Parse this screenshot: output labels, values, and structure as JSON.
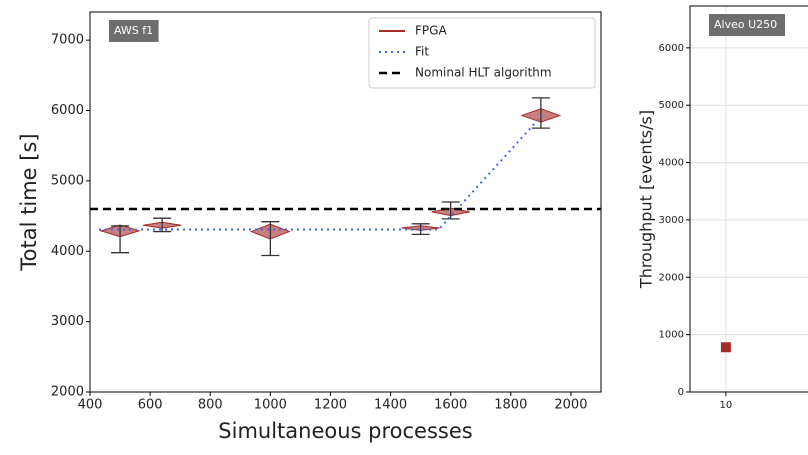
{
  "chart_data": [
    {
      "type": "violin",
      "label_box": "AWS f1",
      "xlabel": "Simultaneous processes",
      "ylabel": "Total time [s]",
      "xlim": [
        400,
        2100
      ],
      "ylim": [
        2000,
        7400
      ],
      "xticks": [
        400,
        600,
        800,
        1000,
        1200,
        1400,
        1600,
        1800,
        2000
      ],
      "yticks": [
        2000,
        3000,
        4000,
        5000,
        6000,
        7000
      ],
      "x": [
        500,
        640,
        1000,
        1500,
        1600,
        1900
      ],
      "grid": false,
      "legend": "upper right",
      "series": [
        {
          "name": "FPGA",
          "color": "#a52a2a",
          "values": [
            4290,
            4370,
            4280,
            4330,
            4560,
            5930
          ],
          "low": [
            3980,
            4280,
            3940,
            4240,
            4460,
            5750
          ],
          "high": [
            4360,
            4470,
            4420,
            4390,
            4700,
            6180
          ]
        },
        {
          "name": "Fit",
          "color": "#4169e1",
          "style": "dotted",
          "x": [
            430,
            1560,
            1910
          ],
          "values": [
            4310,
            4310,
            5960
          ]
        },
        {
          "name": "Nominal HLT algorithm",
          "color": "#000000",
          "style": "dashed",
          "x": [
            400,
            2100
          ],
          "values": [
            4600,
            4600
          ]
        }
      ]
    },
    {
      "type": "scatter",
      "label_box": "Alveo U250",
      "ylabel": "Throughput [events/s]",
      "xscale": "log",
      "xlim": [
        8,
        55
      ],
      "ylim": [
        0,
        6730
      ],
      "xticks": [
        10
      ],
      "yticks": [
        0,
        1000,
        2000,
        3000,
        4000,
        5000,
        6000
      ],
      "grid": true,
      "x": [
        10
      ],
      "series": [
        {
          "color": "#a52a2a",
          "values": [
            780
          ]
        }
      ]
    }
  ]
}
